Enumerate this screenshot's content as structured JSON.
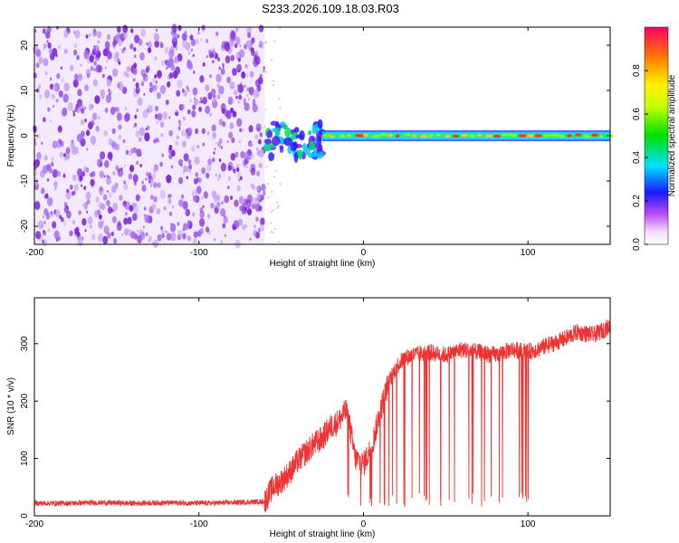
{
  "title": "S233.2026.109.18.03.R03",
  "chart_data": [
    {
      "type": "heatmap",
      "title": "S233.2026.109.18.03.R03",
      "xlabel": "Height of straight line (km)",
      "ylabel": "Frequency (Hz)",
      "xlim": [
        -200,
        150
      ],
      "ylim": [
        -24,
        24
      ],
      "xticks": [
        -200,
        -100,
        0,
        100
      ],
      "yticks": [
        -20,
        -10,
        0,
        10,
        20
      ],
      "noise_region_x": [
        -200,
        -60
      ],
      "transition_region_x": [
        -60,
        -25
      ],
      "signal_line_frequency_hz": 0,
      "signal_line_x": [
        -25,
        150
      ],
      "colorbar": {
        "label": "Normalized spectral amplitude",
        "range": [
          0.0,
          1.0
        ],
        "ticks": [
          0.0,
          0.2,
          0.4,
          0.6,
          0.8
        ],
        "tick_labels": [
          "0.0",
          "0.2",
          "0.4",
          "0.6",
          "0.8"
        ]
      }
    },
    {
      "type": "line",
      "xlabel": "Height of straight line (km)",
      "ylabel": "SNR (10 * v/v)",
      "xlim": [
        -200,
        150
      ],
      "ylim": [
        0,
        380
      ],
      "xticks": [
        -200,
        -100,
        0,
        100
      ],
      "yticks": [
        0,
        100,
        200,
        300
      ],
      "series": [
        {
          "name": "SNR",
          "color": "#ee3333",
          "x": [
            -200,
            -180,
            -160,
            -140,
            -120,
            -100,
            -80,
            -60,
            -55,
            -50,
            -45,
            -40,
            -35,
            -30,
            -25,
            -20,
            -15,
            -10,
            -5,
            0,
            5,
            10,
            15,
            20,
            25,
            30,
            40,
            50,
            60,
            70,
            80,
            90,
            100,
            110,
            120,
            130,
            140,
            150
          ],
          "y": [
            22,
            22,
            23,
            22,
            23,
            22,
            23,
            25,
            50,
            60,
            75,
            95,
            110,
            125,
            135,
            155,
            165,
            185,
            100,
            90,
            120,
            180,
            230,
            260,
            275,
            280,
            285,
            280,
            290,
            285,
            280,
            290,
            285,
            295,
            305,
            320,
            315,
            330
          ]
        }
      ]
    }
  ],
  "colors": {
    "noise_purple": "#7e2bd6",
    "noise_lilac": "#c6a6f2",
    "line_red": "#ee3333"
  }
}
